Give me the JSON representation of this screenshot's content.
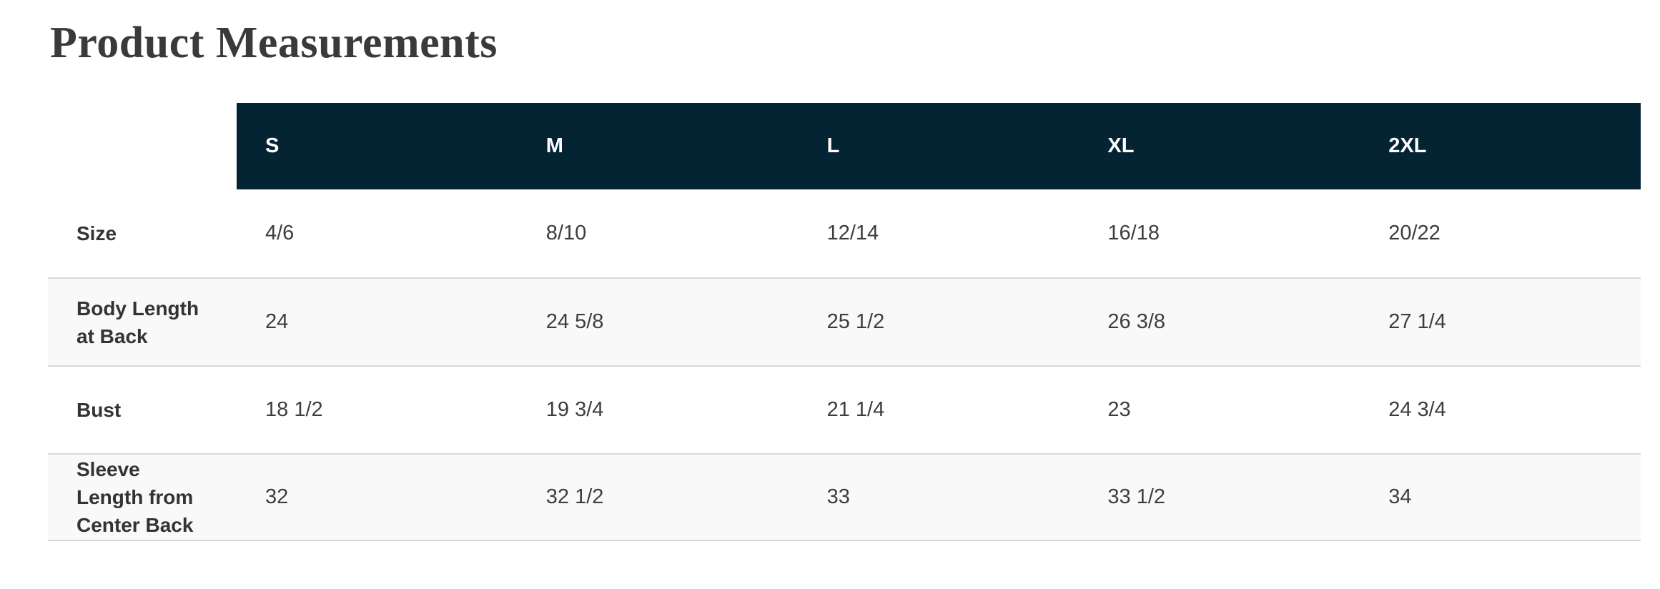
{
  "page": {
    "title": "Product Measurements"
  },
  "table": {
    "columns": [
      "S",
      "M",
      "L",
      "XL",
      "2XL"
    ],
    "rows": [
      {
        "label": "Size",
        "values": [
          "4/6",
          "8/10",
          "12/14",
          "16/18",
          "20/22"
        ]
      },
      {
        "label": "Body Length at Back",
        "values": [
          "24",
          "24 5/8",
          "25 1/2",
          "26 3/8",
          "27 1/4"
        ]
      },
      {
        "label": "Bust",
        "values": [
          "18 1/2",
          "19 3/4",
          "21 1/4",
          "23",
          "24 3/4"
        ]
      },
      {
        "label": "Sleeve Length from Center Back",
        "values": [
          "32",
          "32 1/2",
          "33",
          "33 1/2",
          "34"
        ]
      }
    ],
    "colors": {
      "header_bg": "#042333",
      "header_text": "#ffffff",
      "alt_row_bg": "#f9f9f9",
      "divider": "#d8d8d8",
      "title_text": "#3a3a3a",
      "body_text": "#3d3d3d"
    }
  }
}
